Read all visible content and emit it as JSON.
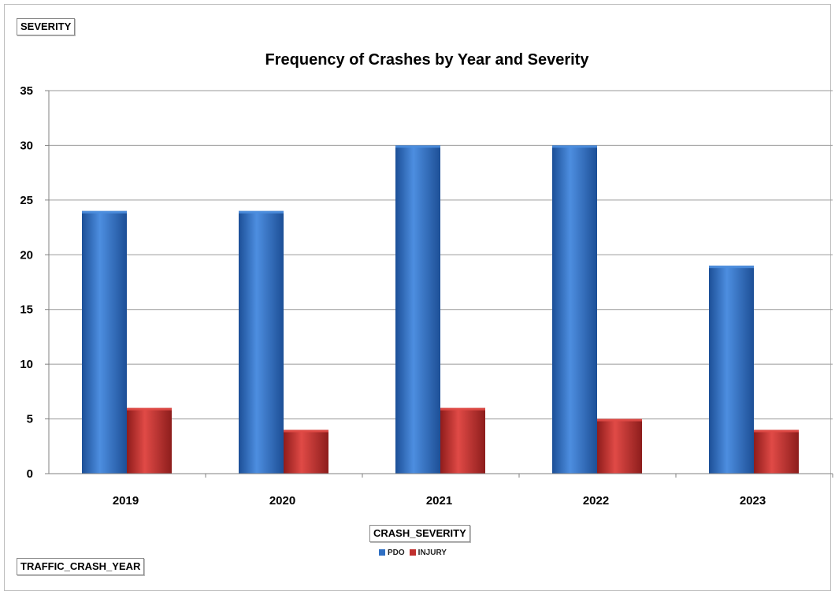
{
  "filter_buttons": {
    "series_field": "SEVERITY",
    "category_field": "TRAFFIC_CRASH_YEAR",
    "legend_field": "CRASH_SEVERITY"
  },
  "chart_data": {
    "type": "bar",
    "title": "Frequency of Crashes by Year and Severity",
    "categories": [
      "2019",
      "2020",
      "2021",
      "2022",
      "2023"
    ],
    "series": [
      {
        "name": "PDO",
        "values": [
          24,
          24,
          30,
          30,
          19
        ],
        "color": "#2f6fc3"
      },
      {
        "name": "INJURY",
        "values": [
          6,
          4,
          6,
          5,
          4
        ],
        "color": "#c0302e"
      }
    ],
    "ylim": [
      0,
      35
    ],
    "yticks": [
      0,
      5,
      10,
      15,
      20,
      25,
      30,
      35
    ],
    "grid": true,
    "legend_position": "bottom"
  }
}
